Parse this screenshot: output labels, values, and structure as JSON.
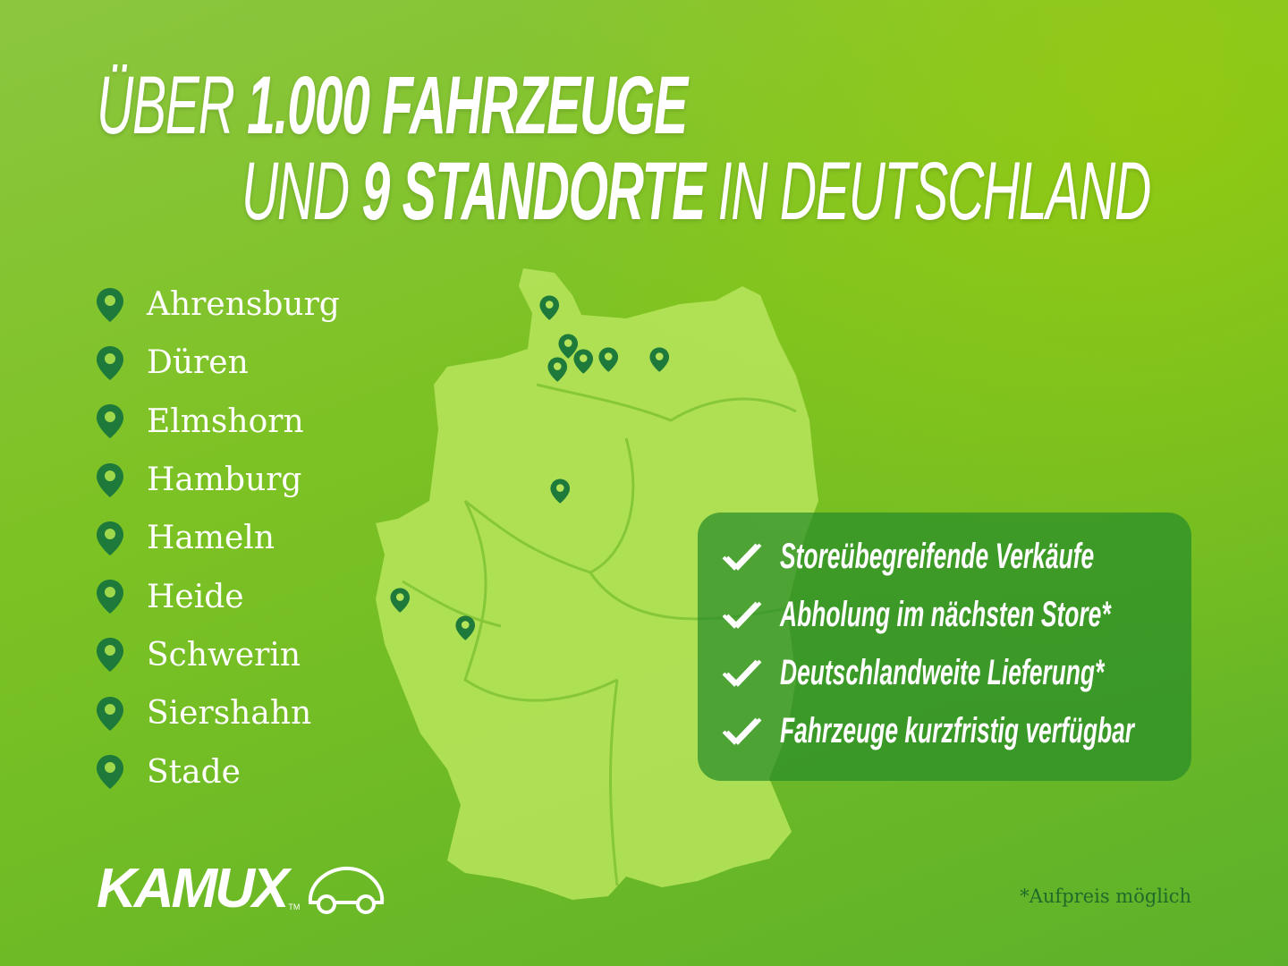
{
  "headline": {
    "line1_a": "ÜBER",
    "line1_b": "1.000 FAHRZEUGE",
    "line2_a": "UND",
    "line2_b": "9 STANDORTE",
    "line2_c": "IN DEUTSCHLAND"
  },
  "locations": [
    "Ahrensburg",
    "Düren",
    "Elmshorn",
    "Hamburg",
    "Hameln",
    "Heide",
    "Schwerin",
    "Siershahn",
    "Stade"
  ],
  "features": [
    "Storeübegreifende Verkäufe",
    "Abholung im nächsten Store*",
    "Deutschlandweite Lieferung*",
    "Fahrzeuge kurzfristig verfügbar"
  ],
  "logo": {
    "text": "KAMUX",
    "tm": "TM"
  },
  "footnote": "*Aufpreis möglich",
  "colors": {
    "pin": "#1e7a3a",
    "map": "#b5e35a",
    "box": "#2f8c2f",
    "background": "#7cc223"
  },
  "icons": {
    "location": "map-pin-icon",
    "feature": "double-check-icon",
    "logo": "car-icon"
  }
}
